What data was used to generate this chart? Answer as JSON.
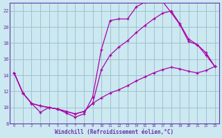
{
  "xlabel": "Windchill (Refroidissement éolien,°C)",
  "bg_color": "#cce8f0",
  "grid_color": "#99bbcc",
  "line_color": "#aa00aa",
  "spine_color": "#6633aa",
  "xlim": [
    -0.5,
    23.5
  ],
  "ylim": [
    8,
    23
  ],
  "xticks": [
    0,
    1,
    2,
    3,
    4,
    5,
    6,
    7,
    8,
    9,
    10,
    11,
    12,
    13,
    14,
    15,
    16,
    17,
    18,
    19,
    20,
    21,
    22,
    23
  ],
  "yticks": [
    8,
    10,
    12,
    14,
    16,
    18,
    20,
    22
  ],
  "line1_x": [
    0,
    1,
    2,
    3,
    4,
    5,
    6,
    7,
    8,
    9,
    10,
    11,
    12,
    13,
    14,
    15,
    16,
    17,
    18,
    19,
    20,
    21,
    22,
    23
  ],
  "line1_y": [
    14.3,
    11.8,
    10.5,
    9.4,
    10.0,
    9.8,
    9.3,
    8.8,
    9.2,
    11.3,
    17.2,
    20.8,
    21.0,
    21.0,
    22.5,
    23.1,
    23.3,
    23.2,
    21.8,
    20.3,
    18.2,
    17.8,
    16.5,
    15.1
  ],
  "line2_x": [
    0,
    1,
    2,
    3,
    4,
    5,
    6,
    7,
    8,
    9,
    10,
    11,
    12,
    13,
    14,
    15,
    16,
    17,
    18,
    19,
    20,
    21,
    22,
    23
  ],
  "line2_y": [
    14.3,
    11.8,
    10.5,
    10.2,
    10.0,
    9.8,
    9.5,
    9.2,
    9.5,
    10.5,
    14.7,
    16.5,
    17.5,
    18.3,
    19.3,
    20.2,
    21.0,
    21.7,
    22.0,
    20.4,
    18.5,
    17.8,
    16.8,
    15.1
  ],
  "line3_x": [
    0,
    1,
    2,
    3,
    4,
    5,
    6,
    7,
    8,
    9,
    10,
    11,
    12,
    13,
    14,
    15,
    16,
    17,
    18,
    19,
    20,
    21,
    22,
    23
  ],
  "line3_y": [
    14.3,
    11.8,
    10.5,
    10.2,
    10.0,
    9.8,
    9.5,
    9.2,
    9.5,
    10.5,
    11.2,
    11.8,
    12.2,
    12.7,
    13.3,
    13.8,
    14.3,
    14.7,
    15.0,
    14.8,
    14.5,
    14.3,
    14.6,
    15.1
  ]
}
